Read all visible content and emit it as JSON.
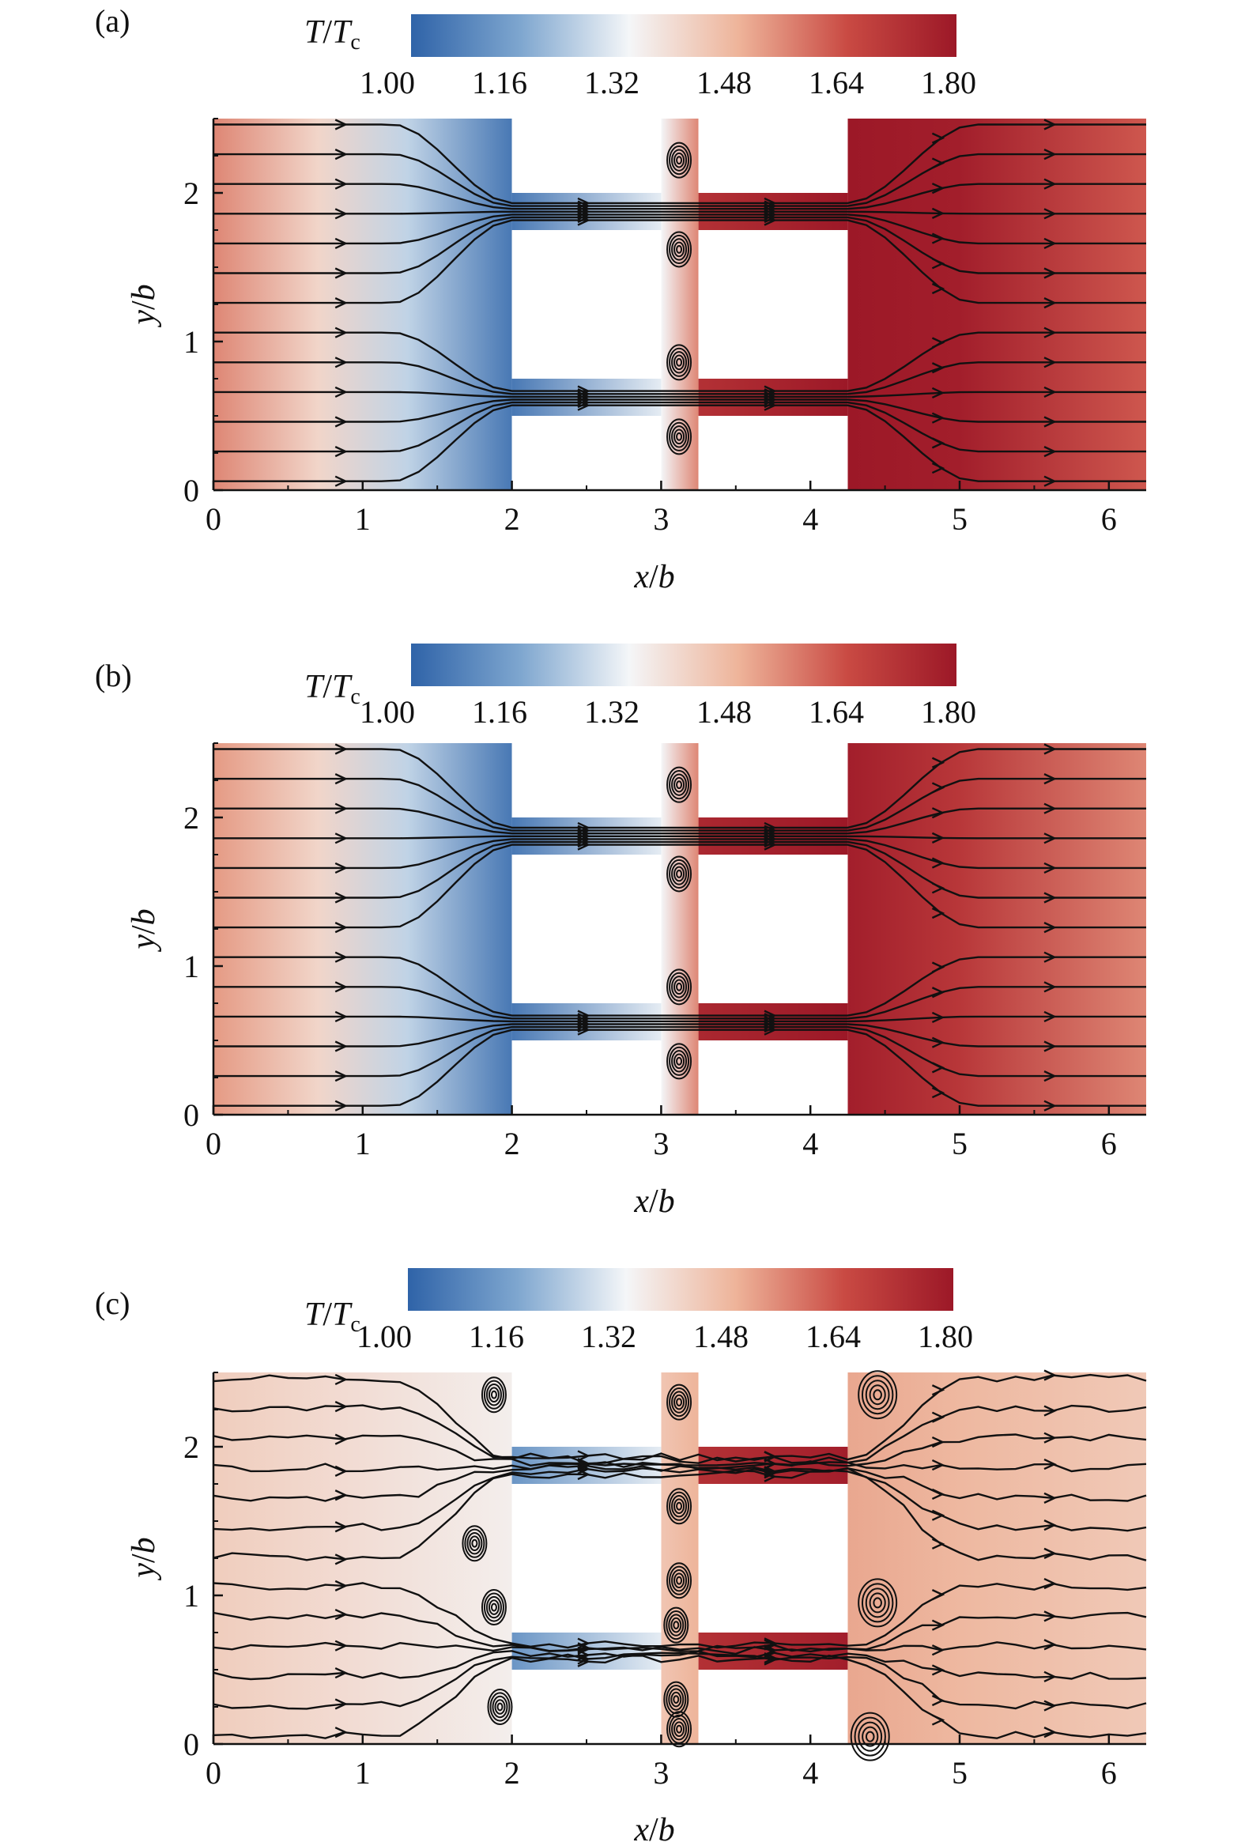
{
  "colorbar": {
    "title_main": "T",
    "title_sep": "/",
    "title_sub_base": "T",
    "title_sub": "c",
    "ticks": [
      "1.00",
      "1.16",
      "1.32",
      "1.48",
      "1.64",
      "1.80"
    ],
    "range": [
      1.0,
      1.8
    ],
    "colors": [
      "#2f63a8",
      "#7ea6cf",
      "#f4f6f8",
      "#eeb49a",
      "#c94a43",
      "#9c1827"
    ]
  },
  "axes": {
    "xlabel_var": "x",
    "xlabel_sep": "/",
    "xlabel_ref": "b",
    "ylabel_var": "y",
    "ylabel_sep": "/",
    "ylabel_ref": "b",
    "xticks": [
      "0",
      "1",
      "2",
      "3",
      "4",
      "5",
      "6"
    ],
    "yticks": [
      "0",
      "1",
      "2"
    ],
    "xlim": [
      0,
      6.25
    ],
    "ylim": [
      0,
      2.5
    ]
  },
  "chart_data": [
    {
      "type": "heatmap",
      "panel_label": "(a)",
      "xlim": [
        0,
        6.25
      ],
      "ylim": [
        0,
        2.5
      ],
      "left_region_T": [
        [
          0,
          1.55
        ],
        [
          0.7,
          1.4
        ],
        [
          1.3,
          1.25
        ],
        [
          2.0,
          1.05
        ]
      ],
      "left_channel_T": [
        [
          2.0,
          1.05
        ],
        [
          3.0,
          1.3
        ]
      ],
      "gap_T": [
        [
          3.0,
          1.32
        ],
        [
          3.25,
          1.55
        ]
      ],
      "right_channel_T": [
        [
          3.25,
          1.72
        ],
        [
          4.25,
          1.8
        ]
      ],
      "right_region_T": [
        [
          4.25,
          1.8
        ],
        [
          5.0,
          1.78
        ],
        [
          6.25,
          1.62
        ]
      ]
    },
    {
      "type": "heatmap",
      "panel_label": "(b)",
      "xlim": [
        0,
        6.25
      ],
      "ylim": [
        0,
        2.5
      ],
      "left_region_T": [
        [
          0,
          1.52
        ],
        [
          0.7,
          1.4
        ],
        [
          1.3,
          1.25
        ],
        [
          2.0,
          1.05
        ]
      ],
      "left_channel_T": [
        [
          2.0,
          1.05
        ],
        [
          3.0,
          1.3
        ]
      ],
      "gap_T": [
        [
          3.0,
          1.32
        ],
        [
          3.25,
          1.55
        ]
      ],
      "right_channel_T": [
        [
          3.25,
          1.75
        ],
        [
          4.25,
          1.8
        ]
      ],
      "right_region_T": [
        [
          4.25,
          1.78
        ],
        [
          5.0,
          1.7
        ],
        [
          6.25,
          1.55
        ]
      ]
    },
    {
      "type": "heatmap",
      "panel_label": "(c)",
      "xlim": [
        0,
        6.25
      ],
      "ylim": [
        0,
        2.5
      ],
      "left_region_T": [
        [
          0,
          1.42
        ],
        [
          1.0,
          1.38
        ],
        [
          2.0,
          1.34
        ]
      ],
      "left_channel_T": [
        [
          2.0,
          1.12
        ],
        [
          3.0,
          1.3
        ]
      ],
      "gap_T": [
        [
          3.0,
          1.44
        ],
        [
          3.25,
          1.48
        ]
      ],
      "right_channel_T": [
        [
          3.25,
          1.72
        ],
        [
          4.25,
          1.78
        ]
      ],
      "right_region_T": [
        [
          4.25,
          1.5
        ],
        [
          5.0,
          1.47
        ],
        [
          6.25,
          1.43
        ]
      ]
    }
  ]
}
